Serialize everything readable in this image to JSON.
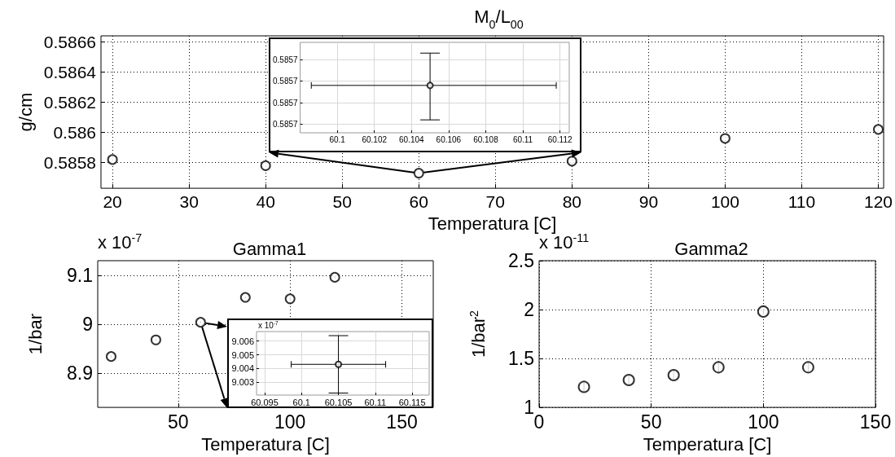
{
  "chart_data": [
    {
      "type": "scatter",
      "title": "M$_{0}$/L$_{00}$",
      "xlabel": "Temperatura [C]",
      "ylabel": "g/cm",
      "x": [
        20,
        40,
        60,
        80,
        100,
        120
      ],
      "values": [
        0.58582,
        0.58578,
        0.58573,
        0.58581,
        0.58596,
        0.58602
      ],
      "color": "#000000",
      "xlim": [
        18.5,
        120.7
      ],
      "ylim": [
        0.58563,
        0.58664
      ],
      "xticks": [
        20,
        30,
        40,
        50,
        60,
        70,
        80,
        90,
        100,
        110,
        120
      ],
      "yticks": [
        0.5858,
        0.586,
        0.5862,
        0.5864,
        0.5866
      ],
      "grid": true,
      "marker": "circle"
    },
    {
      "type": "scatter",
      "x": [
        60.105
      ],
      "values": [
        0.585729
      ],
      "errors": [
        [
          0.585721,
          0.5857365
        ]
      ],
      "xerrors": [
        [
          60.0986,
          60.1118
        ]
      ],
      "color": "#000000",
      "xlim": [
        60.098,
        60.1125
      ],
      "ylim": [
        0.585718,
        0.585739
      ],
      "xticks": [
        60.1,
        60.102,
        60.104,
        60.106,
        60.108,
        60.11,
        60.112
      ],
      "yticks": [
        {
          "value": 0.58572,
          "label": "0.5857"
        },
        {
          "value": 0.585725,
          "label": "0.5857"
        },
        {
          "value": 0.58573,
          "label": "0.5857"
        },
        {
          "value": 0.585735,
          "label": "0.5857"
        }
      ],
      "grid": true,
      "marker": "circle"
    },
    {
      "type": "scatter",
      "title": "Gamma1",
      "xlabel": "Temperatura [C]",
      "ylabel": "1/bar",
      "annotations": [
        "x 10$^{-7}$"
      ],
      "x": [
        20,
        40,
        60,
        80,
        100,
        120
      ],
      "values": [
        8.934,
        8.968,
        9.004,
        9.055,
        9.052,
        9.096
      ],
      "errors": [
        0.002,
        0.002,
        0.002,
        0.002,
        0.002,
        0.002
      ],
      "color": "#000000",
      "xlim": [
        14,
        164
      ],
      "ylim": [
        8.83,
        9.13
      ],
      "xticks": [
        50,
        100,
        150
      ],
      "yticks": [
        8.9,
        9,
        9.1
      ],
      "grid": true,
      "marker": "circle"
    },
    {
      "type": "scatter",
      "annotations": [
        "x 10$^{-7}$"
      ],
      "x": [
        60.105
      ],
      "values": [
        9.0043
      ],
      "errors": [
        [
          9.0022,
          9.0064
        ]
      ],
      "xerrors": [
        [
          60.0986,
          60.1114
        ]
      ],
      "color": "#000000",
      "xlim": [
        60.0939,
        60.1173
      ],
      "ylim": [
        9.00205,
        9.0067
      ],
      "xticks": [
        60.095,
        60.1,
        60.105,
        60.11,
        60.115
      ],
      "yticks": [
        9.003,
        9.004,
        9.005,
        9.006
      ],
      "grid": true,
      "marker": "circle"
    },
    {
      "type": "scatter",
      "title": "Gamma2",
      "xlabel": "Temperatura [C]",
      "ylabel": "1/bar$^{2}$",
      "annotations": [
        "x 10$^{-11}$"
      ],
      "x": [
        20,
        40,
        60,
        80,
        100,
        120
      ],
      "values": [
        1.21,
        1.28,
        1.33,
        1.41,
        1.98,
        1.41
      ],
      "errors": [
        0.05,
        0.05,
        0.05,
        0.06,
        0.03,
        0.05
      ],
      "color": "#000000",
      "xlim": [
        0,
        150
      ],
      "ylim": [
        1,
        2.5
      ],
      "xticks": [
        0,
        50,
        100,
        150
      ],
      "yticks": [
        1,
        1.5,
        2,
        2.5
      ],
      "grid": true,
      "marker": "circle"
    }
  ]
}
